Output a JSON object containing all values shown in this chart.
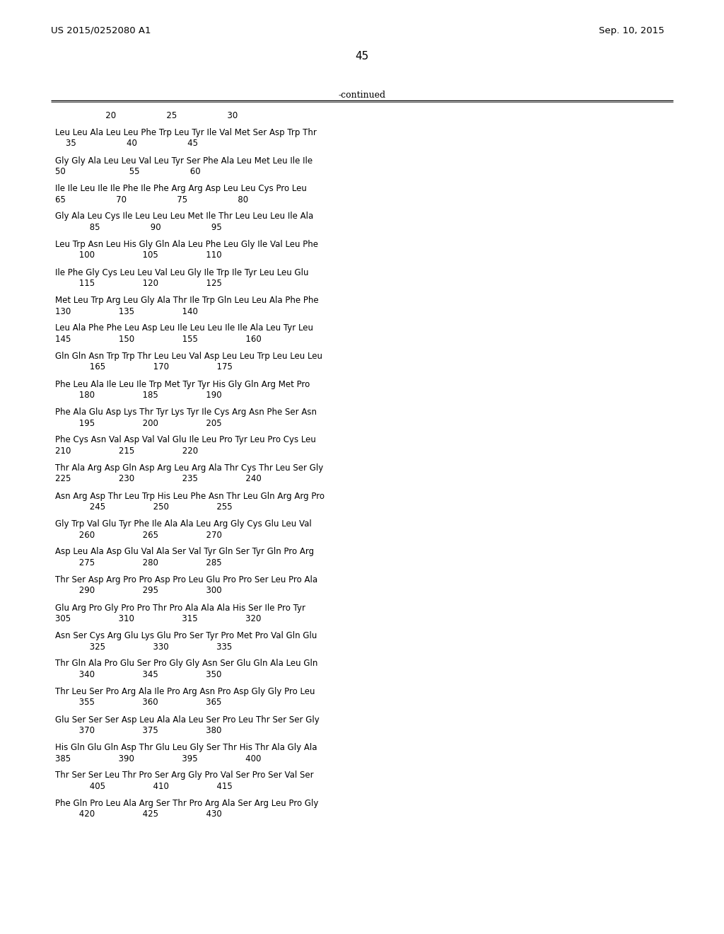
{
  "patent_number": "US 2015/0252080 A1",
  "date": "Sep. 10, 2015",
  "page_number": "45",
  "continued_label": "-continued",
  "background_color": "#ffffff",
  "text_color": "#000000",
  "sequence_lines": [
    [
      "header",
      "                   20                   25                   30"
    ],
    [
      "blank",
      ""
    ],
    [
      "seq",
      "Leu Leu Ala Leu Leu Phe Trp Leu Tyr Ile Val Met Ser Asp Trp Thr"
    ],
    [
      "nums",
      "    35                   40                   45"
    ],
    [
      "blank",
      ""
    ],
    [
      "seq",
      "Gly Gly Ala Leu Leu Val Leu Tyr Ser Phe Ala Leu Met Leu Ile Ile"
    ],
    [
      "nums",
      "50                        55                   60"
    ],
    [
      "blank",
      ""
    ],
    [
      "seq",
      "Ile Ile Leu Ile Ile Phe Ile Phe Arg Arg Asp Leu Leu Cys Pro Leu"
    ],
    [
      "nums",
      "65                   70                   75                   80"
    ],
    [
      "blank",
      ""
    ],
    [
      "seq",
      "Gly Ala Leu Cys Ile Leu Leu Leu Met Ile Thr Leu Leu Leu Ile Ala"
    ],
    [
      "nums",
      "             85                   90                   95"
    ],
    [
      "blank",
      ""
    ],
    [
      "seq",
      "Leu Trp Asn Leu His Gly Gln Ala Leu Phe Leu Gly Ile Val Leu Phe"
    ],
    [
      "nums",
      "         100                  105                  110"
    ],
    [
      "blank",
      ""
    ],
    [
      "seq",
      "Ile Phe Gly Cys Leu Leu Val Leu Gly Ile Trp Ile Tyr Leu Leu Glu"
    ],
    [
      "nums",
      "         115                  120                  125"
    ],
    [
      "blank",
      ""
    ],
    [
      "seq",
      "Met Leu Trp Arg Leu Gly Ala Thr Ile Trp Gln Leu Leu Ala Phe Phe"
    ],
    [
      "nums",
      "130                  135                  140"
    ],
    [
      "blank",
      ""
    ],
    [
      "seq",
      "Leu Ala Phe Phe Leu Asp Leu Ile Leu Leu Ile Ile Ala Leu Tyr Leu"
    ],
    [
      "nums",
      "145                  150                  155                  160"
    ],
    [
      "blank",
      ""
    ],
    [
      "seq",
      "Gln Gln Asn Trp Trp Thr Leu Leu Val Asp Leu Leu Trp Leu Leu Leu"
    ],
    [
      "nums",
      "             165                  170                  175"
    ],
    [
      "blank",
      ""
    ],
    [
      "seq",
      "Phe Leu Ala Ile Leu Ile Trp Met Tyr Tyr His Gly Gln Arg Met Pro"
    ],
    [
      "nums",
      "         180                  185                  190"
    ],
    [
      "blank",
      ""
    ],
    [
      "seq",
      "Phe Ala Glu Asp Lys Thr Tyr Lys Tyr Ile Cys Arg Asn Phe Ser Asn"
    ],
    [
      "nums",
      "         195                  200                  205"
    ],
    [
      "blank",
      ""
    ],
    [
      "seq",
      "Phe Cys Asn Val Asp Val Val Glu Ile Leu Pro Tyr Leu Pro Cys Leu"
    ],
    [
      "nums",
      "210                  215                  220"
    ],
    [
      "blank",
      ""
    ],
    [
      "seq",
      "Thr Ala Arg Asp Gln Asp Arg Leu Arg Ala Thr Cys Thr Leu Ser Gly"
    ],
    [
      "nums",
      "225                  230                  235                  240"
    ],
    [
      "blank",
      ""
    ],
    [
      "seq",
      "Asn Arg Asp Thr Leu Trp His Leu Phe Asn Thr Leu Gln Arg Arg Pro"
    ],
    [
      "nums",
      "             245                  250                  255"
    ],
    [
      "blank",
      ""
    ],
    [
      "seq",
      "Gly Trp Val Glu Tyr Phe Ile Ala Ala Leu Arg Gly Cys Glu Leu Val"
    ],
    [
      "nums",
      "         260                  265                  270"
    ],
    [
      "blank",
      ""
    ],
    [
      "seq",
      "Asp Leu Ala Asp Glu Val Ala Ser Val Tyr Gln Ser Tyr Gln Pro Arg"
    ],
    [
      "nums",
      "         275                  280                  285"
    ],
    [
      "blank",
      ""
    ],
    [
      "seq",
      "Thr Ser Asp Arg Pro Pro Asp Pro Leu Glu Pro Pro Ser Leu Pro Ala"
    ],
    [
      "nums",
      "         290                  295                  300"
    ],
    [
      "blank",
      ""
    ],
    [
      "seq",
      "Glu Arg Pro Gly Pro Pro Thr Pro Ala Ala Ala His Ser Ile Pro Tyr"
    ],
    [
      "nums",
      "305                  310                  315                  320"
    ],
    [
      "blank",
      ""
    ],
    [
      "seq",
      "Asn Ser Cys Arg Glu Lys Glu Pro Ser Tyr Pro Met Pro Val Gln Glu"
    ],
    [
      "nums",
      "             325                  330                  335"
    ],
    [
      "blank",
      ""
    ],
    [
      "seq",
      "Thr Gln Ala Pro Glu Ser Pro Gly Gly Asn Ser Glu Gln Ala Leu Gln"
    ],
    [
      "nums",
      "         340                  345                  350"
    ],
    [
      "blank",
      ""
    ],
    [
      "seq",
      "Thr Leu Ser Pro Arg Ala Ile Pro Arg Asn Pro Asp Gly Gly Pro Leu"
    ],
    [
      "nums",
      "         355                  360                  365"
    ],
    [
      "blank",
      ""
    ],
    [
      "seq",
      "Glu Ser Ser Ser Asp Leu Ala Ala Leu Ser Pro Leu Thr Ser Ser Gly"
    ],
    [
      "nums",
      "         370                  375                  380"
    ],
    [
      "blank",
      ""
    ],
    [
      "seq",
      "His Gln Glu Gln Asp Thr Glu Leu Gly Ser Thr His Thr Ala Gly Ala"
    ],
    [
      "nums",
      "385                  390                  395                  400"
    ],
    [
      "blank",
      ""
    ],
    [
      "seq",
      "Thr Ser Ser Leu Thr Pro Ser Arg Gly Pro Val Ser Pro Ser Val Ser"
    ],
    [
      "nums",
      "             405                  410                  415"
    ],
    [
      "blank",
      ""
    ],
    [
      "seq",
      "Phe Gln Pro Leu Ala Arg Ser Thr Pro Arg Ala Ser Arg Leu Pro Gly"
    ],
    [
      "nums",
      "         420                  425                  430"
    ]
  ]
}
